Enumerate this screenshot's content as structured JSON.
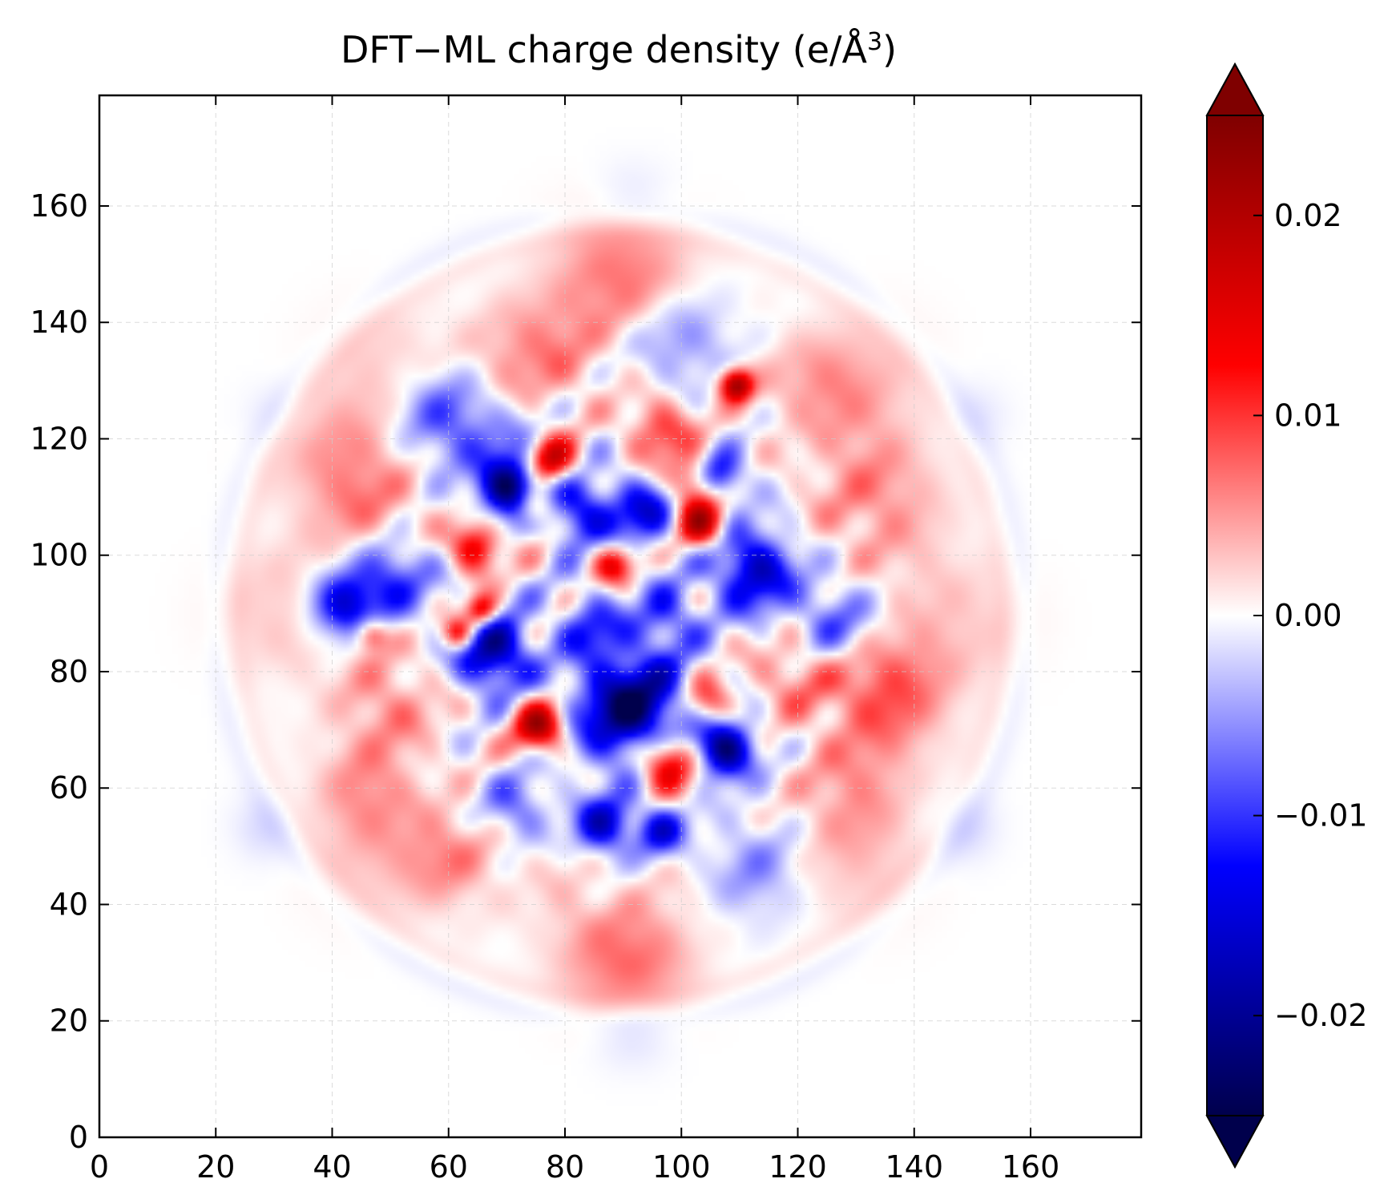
{
  "chart_data": {
    "type": "heatmap",
    "title": "DFT−ML charge density (e/Å",
    "title_sup": "3",
    "title_tail": ")",
    "xlabel": "",
    "ylabel": "",
    "xlim": [
      0,
      179
    ],
    "ylim": [
      0,
      179
    ],
    "xticks": [
      0,
      20,
      40,
      60,
      80,
      100,
      120,
      140,
      160
    ],
    "yticks": [
      0,
      20,
      40,
      60,
      80,
      100,
      120,
      140,
      160
    ],
    "grid": true,
    "colormap": "seismic",
    "colormap_stops": [
      "#00004c",
      "#0000ff",
      "#ffffff",
      "#ff0000",
      "#7f0000"
    ],
    "vmin": -0.025,
    "vmax": 0.025,
    "colorbar_extend": "both",
    "colorbar_ticks": [
      0.02,
      0.01,
      0.0,
      -0.01,
      -0.02
    ],
    "colorbar_tick_labels": [
      "0.02",
      "0.01",
      "0.00",
      "−0.01",
      "−0.02"
    ],
    "pattern": "roughly circular cluster of alternating charge density centered near (90, 90); outer ring mostly faint red with faint blue rim",
    "features": [
      {
        "x": 92,
        "y": 74,
        "value": -0.024,
        "sigma": 6.5
      },
      {
        "x": 108,
        "y": 67,
        "value": -0.022,
        "sigma": 3.5
      },
      {
        "x": 71,
        "y": 112,
        "value": -0.022,
        "sigma": 3.5
      },
      {
        "x": 68,
        "y": 84,
        "value": -0.02,
        "sigma": 4.5
      },
      {
        "x": 42,
        "y": 92,
        "value": -0.016,
        "sigma": 4
      },
      {
        "x": 113,
        "y": 98,
        "value": -0.017,
        "sigma": 5
      },
      {
        "x": 107,
        "y": 114,
        "value": -0.016,
        "sigma": 3
      },
      {
        "x": 60,
        "y": 125,
        "value": -0.01,
        "sigma": 6
      },
      {
        "x": 50,
        "y": 97,
        "value": -0.012,
        "sigma": 5
      },
      {
        "x": 83,
        "y": 108,
        "value": -0.014,
        "sigma": 4
      },
      {
        "x": 94,
        "y": 108,
        "value": -0.014,
        "sigma": 4
      },
      {
        "x": 87,
        "y": 54,
        "value": -0.016,
        "sigma": 3.5
      },
      {
        "x": 97,
        "y": 53,
        "value": -0.014,
        "sigma": 3
      },
      {
        "x": 72,
        "y": 57,
        "value": -0.008,
        "sigma": 4
      },
      {
        "x": 100,
        "y": 138,
        "value": -0.008,
        "sigma": 6
      },
      {
        "x": 85,
        "y": 88,
        "value": -0.01,
        "sigma": 4
      },
      {
        "x": 98,
        "y": 90,
        "value": -0.01,
        "sigma": 4
      },
      {
        "x": 127,
        "y": 89,
        "value": -0.008,
        "sigma": 5
      },
      {
        "x": 114,
        "y": 47,
        "value": -0.007,
        "sigma": 6
      },
      {
        "x": 72,
        "y": 118,
        "value": -0.006,
        "sigma": 6
      },
      {
        "x": 98,
        "y": 65,
        "value": 0.021,
        "sigma": 3.5
      },
      {
        "x": 76,
        "y": 71,
        "value": 0.02,
        "sigma": 3
      },
      {
        "x": 78,
        "y": 117,
        "value": 0.02,
        "sigma": 3
      },
      {
        "x": 104,
        "y": 106,
        "value": 0.018,
        "sigma": 3
      },
      {
        "x": 110,
        "y": 130,
        "value": 0.022,
        "sigma": 2
      },
      {
        "x": 66,
        "y": 91,
        "value": 0.018,
        "sigma": 2
      },
      {
        "x": 62,
        "y": 87,
        "value": 0.016,
        "sigma": 2
      },
      {
        "x": 65,
        "y": 102,
        "value": 0.015,
        "sigma": 3
      },
      {
        "x": 75,
        "y": 109,
        "value": 0.014,
        "sigma": 2.5
      },
      {
        "x": 89,
        "y": 99,
        "value": 0.013,
        "sigma": 2.5
      },
      {
        "x": 103,
        "y": 113,
        "value": 0.014,
        "sigma": 3
      },
      {
        "x": 105,
        "y": 75,
        "value": 0.012,
        "sigma": 3
      },
      {
        "x": 97,
        "y": 122,
        "value": 0.01,
        "sigma": 4
      },
      {
        "x": 47,
        "y": 87,
        "value": 0.012,
        "sigma": 2
      },
      {
        "x": 136,
        "y": 76,
        "value": 0.008,
        "sigma": 7
      },
      {
        "x": 40,
        "y": 118,
        "value": 0.005,
        "sigma": 7
      },
      {
        "x": 47,
        "y": 108,
        "value": 0.005,
        "sigma": 6
      },
      {
        "x": 92,
        "y": 29,
        "value": 0.006,
        "sigma": 7
      },
      {
        "x": 90,
        "y": 150,
        "value": 0.005,
        "sigma": 8
      },
      {
        "x": 135,
        "y": 110,
        "value": 0.005,
        "sigma": 8
      },
      {
        "x": 50,
        "y": 75,
        "value": 0.005,
        "sigma": 6
      },
      {
        "x": 130,
        "y": 60,
        "value": 0.004,
        "sigma": 7
      },
      {
        "x": 75,
        "y": 135,
        "value": 0.006,
        "sigma": 7
      },
      {
        "x": 120,
        "y": 80,
        "value": 0.006,
        "sigma": 5
      },
      {
        "x": 60,
        "y": 48,
        "value": 0.005,
        "sigma": 6
      },
      {
        "x": 125,
        "y": 130,
        "value": 0.004,
        "sigma": 6
      },
      {
        "x": 45,
        "y": 60,
        "value": 0.004,
        "sigma": 6
      },
      {
        "x": 92,
        "y": 18,
        "value": -0.004,
        "sigma": 5
      },
      {
        "x": 92,
        "y": 163,
        "value": -0.003,
        "sigma": 5
      },
      {
        "x": 28,
        "y": 53,
        "value": -0.003,
        "sigma": 4
      },
      {
        "x": 150,
        "y": 53,
        "value": -0.003,
        "sigma": 4
      },
      {
        "x": 30,
        "y": 125,
        "value": -0.002,
        "sigma": 4
      },
      {
        "x": 152,
        "y": 125,
        "value": -0.002,
        "sigma": 4
      }
    ]
  }
}
